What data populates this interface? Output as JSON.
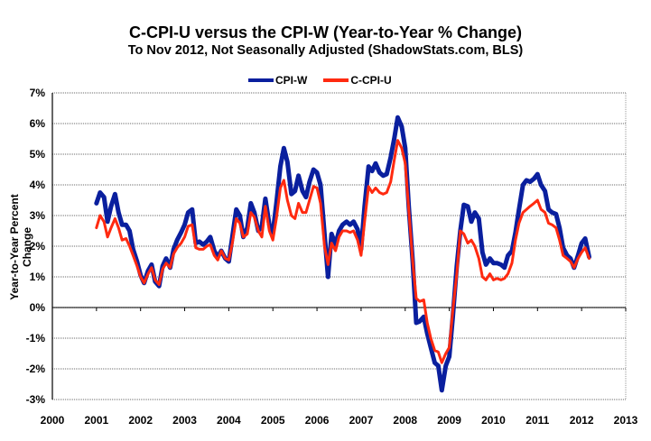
{
  "chart_data": {
    "type": "line",
    "title": "C-CPI-U versus the CPI-W (Year-to-Year % Change)",
    "subtitle": "To Nov 2012, Not Seasonally Adjusted (ShadowStats.com, BLS)",
    "xlabel": "",
    "ylabel": "Year-to-Year Percent Change",
    "xlim": [
      2000,
      2013
    ],
    "ylim": [
      -3,
      7
    ],
    "grid": true,
    "legend": "top-center",
    "x_ticks": [
      "2000",
      "2001",
      "2002",
      "2003",
      "2004",
      "2005",
      "2006",
      "2007",
      "2008",
      "2009",
      "2010",
      "2011",
      "2012",
      "2013"
    ],
    "y_ticks": [
      "7%",
      "6%",
      "5%",
      "4%",
      "3%",
      "2%",
      "1%",
      "0%",
      "-1%",
      "-2%",
      "-3%"
    ],
    "y_tick_values": [
      7,
      6,
      5,
      4,
      3,
      2,
      1,
      0,
      -1,
      -2,
      -3
    ],
    "x": [
      2001.0,
      2001.08,
      2001.17,
      2001.25,
      2001.33,
      2001.42,
      2001.5,
      2001.58,
      2001.67,
      2001.75,
      2001.83,
      2001.92,
      2002.0,
      2002.08,
      2002.17,
      2002.25,
      2002.33,
      2002.42,
      2002.5,
      2002.58,
      2002.67,
      2002.75,
      2002.83,
      2002.92,
      2003.0,
      2003.08,
      2003.17,
      2003.25,
      2003.33,
      2003.42,
      2003.5,
      2003.58,
      2003.67,
      2003.75,
      2003.83,
      2003.92,
      2004.0,
      2004.08,
      2004.17,
      2004.25,
      2004.33,
      2004.42,
      2004.5,
      2004.58,
      2004.67,
      2004.75,
      2004.83,
      2004.92,
      2005.0,
      2005.08,
      2005.17,
      2005.25,
      2005.33,
      2005.42,
      2005.5,
      2005.58,
      2005.67,
      2005.75,
      2005.83,
      2005.92,
      2006.0,
      2006.08,
      2006.17,
      2006.25,
      2006.33,
      2006.42,
      2006.5,
      2006.58,
      2006.67,
      2006.75,
      2006.83,
      2006.92,
      2007.0,
      2007.08,
      2007.17,
      2007.25,
      2007.33,
      2007.42,
      2007.5,
      2007.58,
      2007.67,
      2007.75,
      2007.83,
      2007.92,
      2008.0,
      2008.08,
      2008.17,
      2008.25,
      2008.33,
      2008.42,
      2008.5,
      2008.58,
      2008.67,
      2008.75,
      2008.83,
      2008.92,
      2009.0,
      2009.08,
      2009.17,
      2009.25,
      2009.33,
      2009.42,
      2009.5,
      2009.58,
      2009.67,
      2009.75,
      2009.83,
      2009.92,
      2010.0,
      2010.08,
      2010.17,
      2010.25,
      2010.33,
      2010.42,
      2010.5,
      2010.58,
      2010.67,
      2010.75,
      2010.83,
      2010.92,
      2011.0,
      2011.08,
      2011.17,
      2011.25,
      2011.33,
      2011.42,
      2011.5,
      2011.58,
      2011.67,
      2011.75,
      2011.83,
      2011.92,
      2012.0,
      2012.08,
      2012.17,
      2012.25,
      2012.33,
      2012.42,
      2012.5,
      2012.58,
      2012.67,
      2012.75,
      2012.83
    ],
    "series": [
      {
        "name": "CPI-W",
        "color": "#0a1f9e",
        "values": [
          3.4,
          3.75,
          3.6,
          2.8,
          3.3,
          3.7,
          3.1,
          2.7,
          2.7,
          2.5,
          1.9,
          1.5,
          1.05,
          0.8,
          1.2,
          1.4,
          0.85,
          0.7,
          1.35,
          1.6,
          1.3,
          1.9,
          2.2,
          2.45,
          2.7,
          3.1,
          3.2,
          2.1,
          2.15,
          2.05,
          2.15,
          2.3,
          1.85,
          1.65,
          1.85,
          1.6,
          1.5,
          2.3,
          3.2,
          3.0,
          2.3,
          2.6,
          3.4,
          3.1,
          2.5,
          2.65,
          3.55,
          2.7,
          2.45,
          3.4,
          4.6,
          5.2,
          4.75,
          3.7,
          3.8,
          4.3,
          3.8,
          3.6,
          4.1,
          4.5,
          4.4,
          4.0,
          2.4,
          1.0,
          2.4,
          2.05,
          2.5,
          2.7,
          2.8,
          2.7,
          2.8,
          2.55,
          1.9,
          3.3,
          4.6,
          4.45,
          4.7,
          4.4,
          4.3,
          4.35,
          4.9,
          5.5,
          6.2,
          5.9,
          5.2,
          3.3,
          1.5,
          -0.5,
          -0.45,
          -0.3,
          -0.85,
          -1.3,
          -1.8,
          -1.9,
          -2.7,
          -1.9,
          -1.6,
          -0.3,
          1.35,
          2.5,
          3.35,
          3.3,
          2.8,
          3.1,
          2.9,
          1.8,
          1.4,
          1.6,
          1.45,
          1.45,
          1.4,
          1.3,
          1.7,
          1.85,
          2.45,
          3.2,
          4.0,
          4.15,
          4.1,
          4.2,
          4.35,
          4.0,
          3.8,
          3.2,
          3.1,
          3.05,
          2.6,
          1.95,
          1.7,
          1.6,
          1.3,
          1.7,
          2.1,
          2.25,
          1.65
        ]
      },
      {
        "name": "C-CPI-U",
        "color": "#ff2a10",
        "values": [
          2.6,
          3.0,
          2.8,
          2.3,
          2.6,
          2.9,
          2.6,
          2.2,
          2.25,
          2.0,
          1.7,
          1.35,
          1.0,
          0.8,
          1.1,
          1.3,
          0.9,
          0.75,
          1.25,
          1.45,
          1.3,
          1.75,
          1.95,
          2.1,
          2.3,
          2.65,
          2.7,
          1.95,
          1.9,
          1.9,
          2.0,
          2.05,
          1.7,
          1.55,
          1.85,
          1.6,
          1.55,
          2.1,
          2.9,
          2.75,
          2.3,
          2.4,
          3.1,
          2.95,
          2.5,
          2.3,
          3.3,
          2.5,
          2.2,
          2.9,
          3.9,
          4.15,
          3.5,
          3.0,
          2.9,
          3.4,
          3.1,
          3.1,
          3.5,
          3.95,
          3.9,
          3.4,
          2.0,
          1.4,
          2.1,
          1.85,
          2.3,
          2.5,
          2.5,
          2.45,
          2.5,
          2.2,
          1.7,
          2.8,
          3.95,
          3.75,
          3.9,
          3.75,
          3.7,
          3.75,
          4.1,
          4.8,
          5.45,
          5.2,
          4.7,
          3.2,
          1.5,
          0.3,
          0.2,
          0.25,
          -0.5,
          -1.0,
          -1.4,
          -1.45,
          -1.8,
          -1.5,
          -1.3,
          -0.1,
          1.1,
          2.5,
          2.4,
          2.1,
          2.2,
          2.0,
          1.6,
          1.0,
          0.9,
          1.1,
          0.9,
          0.95,
          0.9,
          0.95,
          1.1,
          1.45,
          2.2,
          2.75,
          3.1,
          3.2,
          3.3,
          3.4,
          3.5,
          3.2,
          3.1,
          2.75,
          2.7,
          2.6,
          2.2,
          1.7,
          1.6,
          1.5,
          1.3,
          1.6,
          1.8,
          1.95,
          1.6
        ]
      }
    ]
  }
}
